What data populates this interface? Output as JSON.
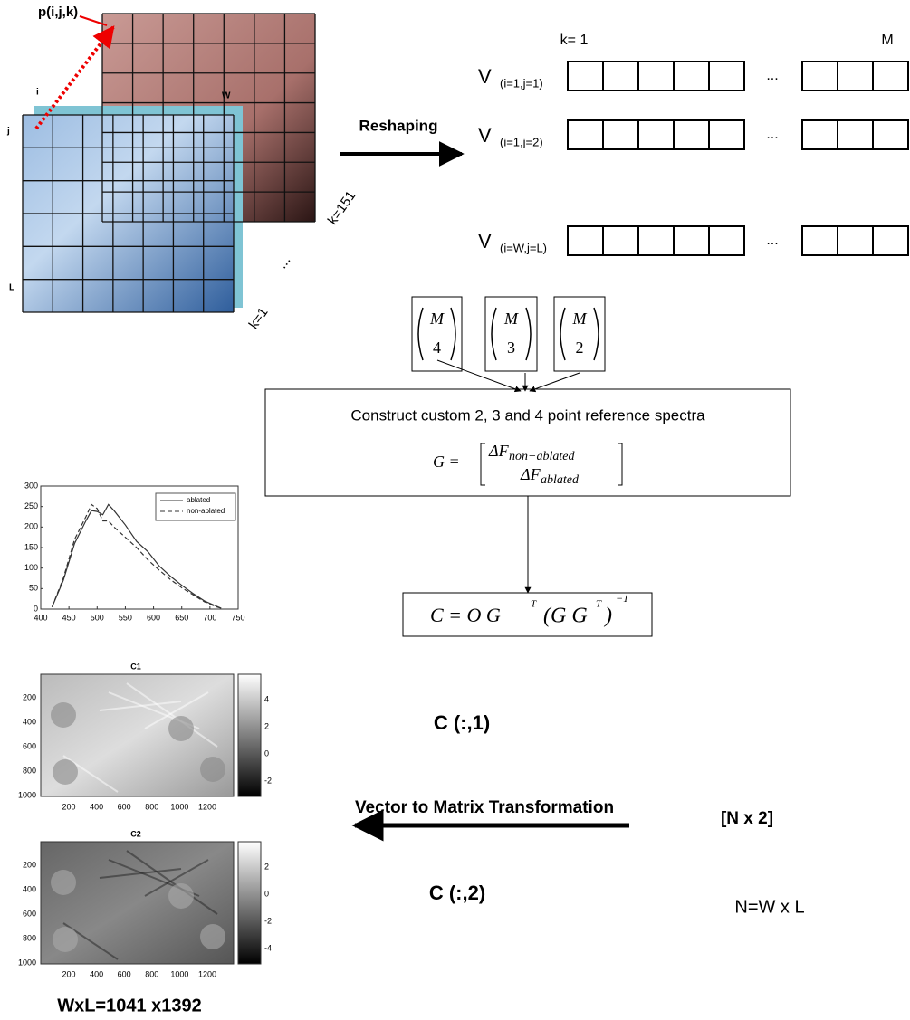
{
  "cube": {
    "point_label": "p(i,j,k)",
    "i_label": "i",
    "j_label": "j",
    "w_label": "W",
    "l_label": "L",
    "k_top": "k=151",
    "k_bottom": "k=1",
    "dots": "..."
  },
  "reshaping": "Reshaping",
  "vectors": {
    "k_start": "k= 1",
    "k_end": "M",
    "rows": [
      {
        "v": "V",
        "sub": "(i=1,j=1)",
        "dots": "..."
      },
      {
        "v": "V",
        "sub": "(i=1,j=2)",
        "dots": "..."
      },
      {
        "v": "V",
        "sub": "(i=W,j=L)",
        "dots": "..."
      }
    ]
  },
  "binomials": [
    {
      "top": "M",
      "bottom": "4"
    },
    {
      "top": "M",
      "bottom": "3"
    },
    {
      "top": "M",
      "bottom": "2"
    }
  ],
  "construct": {
    "text": "Construct custom 2, 3 and 4 point reference spectra",
    "g_lhs": "G =",
    "row1": "ΔF",
    "row1_sub": "non−ablated",
    "row2": "ΔF",
    "row2_sub": "ablated"
  },
  "formula": {
    "main": "C = O G",
    "sup1": "T",
    "mid": "(G G",
    "sup2": "T",
    "close": ")",
    "sup3": "−1"
  },
  "spectrum_plot": {
    "type": "line",
    "xlim": [
      400,
      750
    ],
    "ylim": [
      0,
      300
    ],
    "xticks": [
      400,
      450,
      500,
      550,
      600,
      650,
      700,
      750
    ],
    "yticks": [
      0,
      50,
      100,
      150,
      200,
      250,
      300
    ],
    "x": [
      420,
      440,
      460,
      480,
      490,
      500,
      510,
      520,
      530,
      550,
      570,
      590,
      610,
      630,
      650,
      670,
      690,
      710,
      720
    ],
    "series": [
      {
        "name": "ablated",
        "color": "#333333",
        "dash": false,
        "values": [
          5,
          70,
          160,
          215,
          240,
          238,
          230,
          255,
          240,
          205,
          165,
          140,
          105,
          80,
          58,
          38,
          20,
          8,
          2
        ]
      },
      {
        "name": "non-ablated",
        "color": "#333333",
        "dash": true,
        "values": [
          5,
          75,
          170,
          225,
          255,
          245,
          215,
          215,
          200,
          175,
          150,
          120,
          95,
          72,
          52,
          35,
          18,
          6,
          2
        ]
      }
    ]
  },
  "heatmaps": [
    {
      "title": "C1",
      "yticks": [
        200,
        400,
        600,
        800,
        1000
      ],
      "xticks": [
        200,
        400,
        600,
        800,
        1000,
        1200
      ],
      "colorbar_ticks": [
        4,
        2,
        0,
        -2
      ]
    },
    {
      "title": "C2",
      "yticks": [
        200,
        400,
        600,
        800,
        1000
      ],
      "xticks": [
        200,
        400,
        600,
        800,
        1000,
        1200
      ],
      "colorbar_ticks": [
        2,
        0,
        -2,
        -4
      ]
    }
  ],
  "c1_label": "C (:,1)",
  "c2_label": "C (:,2)",
  "transform_label": "Vector to Matrix Transformation",
  "size_label": "[N x 2]",
  "n_label": "N=W x L",
  "wxl_label": "WxL=1041 x1392"
}
